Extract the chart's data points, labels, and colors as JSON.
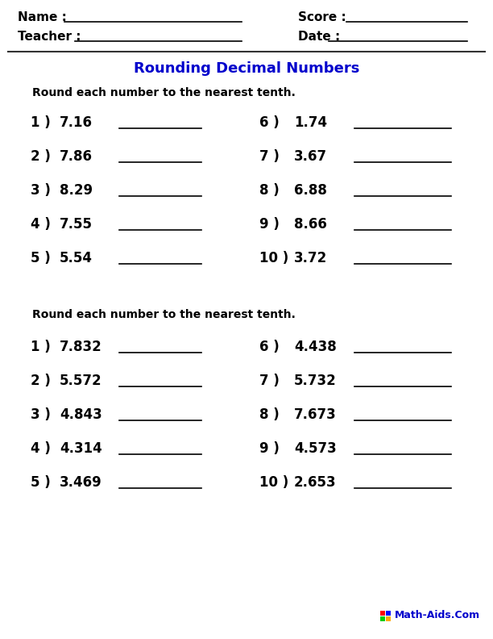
{
  "title": "Rounding Decimal Numbers",
  "title_color": "#0000CC",
  "bg_color": "#FFFFFF",
  "section1_instruction": "Round each number to the nearest tenth.",
  "section1_left": [
    {
      "num": "1 )",
      "val": "7.16"
    },
    {
      "num": "2 )",
      "val": "7.86"
    },
    {
      "num": "3 )",
      "val": "8.29"
    },
    {
      "num": "4 )",
      "val": "7.55"
    },
    {
      "num": "5 )",
      "val": "5.54"
    }
  ],
  "section1_right": [
    {
      "num": "6 )",
      "val": "1.74"
    },
    {
      "num": "7 )",
      "val": "3.67"
    },
    {
      "num": "8 )",
      "val": "6.88"
    },
    {
      "num": "9 )",
      "val": "8.66"
    },
    {
      "num": "10 )",
      "val": "3.72"
    }
  ],
  "section2_instruction": "Round each number to the nearest tenth.",
  "section2_left": [
    {
      "num": "1 )",
      "val": "7.832"
    },
    {
      "num": "2 )",
      "val": "5.572"
    },
    {
      "num": "3 )",
      "val": "4.843"
    },
    {
      "num": "4 )",
      "val": "4.314"
    },
    {
      "num": "5 )",
      "val": "3.469"
    }
  ],
  "section2_right": [
    {
      "num": "6 )",
      "val": "4.438"
    },
    {
      "num": "7 )",
      "val": "5.732"
    },
    {
      "num": "8 )",
      "val": "7.673"
    },
    {
      "num": "9 )",
      "val": "4.573"
    },
    {
      "num": "10 )",
      "val": "2.653"
    }
  ],
  "footer": "Math-Aids.Com",
  "text_color": "#000000",
  "line_color": "#000000",
  "sep_line_color": "#333333",
  "title_fontsize": 13,
  "header_fontsize": 11,
  "instruction_fontsize": 10,
  "problem_fontsize": 12,
  "footer_fontsize": 9,
  "logo_colors": [
    [
      "#FF0000",
      "#0000FF"
    ],
    [
      "#00CC00",
      "#FFAA00"
    ]
  ]
}
